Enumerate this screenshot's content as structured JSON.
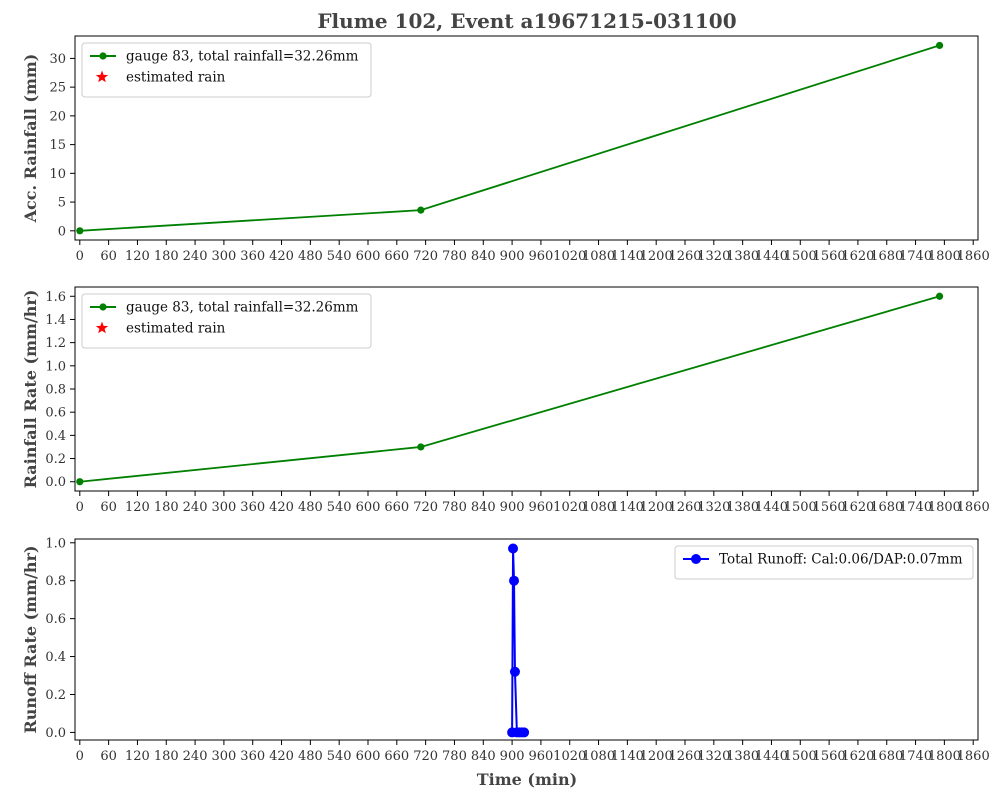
{
  "chart_data": {
    "title": "Flume 102, Event a19671215-031100",
    "xlabel": "Time (min)",
    "xlim": [
      -10,
      1870
    ],
    "xticks": [
      0,
      60,
      120,
      180,
      240,
      300,
      360,
      420,
      480,
      540,
      600,
      660,
      720,
      780,
      840,
      900,
      960,
      1020,
      1080,
      1140,
      1200,
      1260,
      1320,
      1380,
      1440,
      1500,
      1560,
      1620,
      1680,
      1740,
      1800,
      1860
    ],
    "panels": [
      {
        "type": "line",
        "ylabel": "Acc. Rainfall (mm)",
        "ylim": [
          -1.6,
          33.9
        ],
        "yticks": [
          0,
          5,
          10,
          15,
          20,
          25,
          30
        ],
        "ytick_labels": [
          "0",
          "5",
          "10",
          "15",
          "20",
          "25",
          "30"
        ],
        "legend_position": "top-left",
        "series": [
          {
            "name": "gauge 83, total rainfall=32.26mm",
            "color": "#008000",
            "marker": "circle",
            "x": [
              0,
              710,
              1790
            ],
            "y": [
              0,
              3.6,
              32.26
            ]
          },
          {
            "name": "estimated rain",
            "color": "#ff0000",
            "marker": "star",
            "x": [],
            "y": []
          }
        ]
      },
      {
        "type": "line",
        "ylabel": "Rainfall Rate (mm/hr)",
        "ylim": [
          -0.08,
          1.68
        ],
        "yticks": [
          0,
          0.2,
          0.4,
          0.6,
          0.8,
          1.0,
          1.2,
          1.4,
          1.6
        ],
        "ytick_labels": [
          "0.0",
          "0.2",
          "0.4",
          "0.6",
          "0.8",
          "1.0",
          "1.2",
          "1.4",
          "1.6"
        ],
        "legend_position": "top-left",
        "series": [
          {
            "name": "gauge 83, total rainfall=32.26mm",
            "color": "#008000",
            "marker": "circle",
            "x": [
              0,
              710,
              1790
            ],
            "y": [
              0,
              0.3,
              1.6
            ]
          },
          {
            "name": "estimated rain",
            "color": "#ff0000",
            "marker": "star",
            "x": [],
            "y": []
          }
        ]
      },
      {
        "type": "line",
        "ylabel": "Runoff Rate (mm/hr)",
        "ylim": [
          -0.04,
          1.02
        ],
        "yticks": [
          0,
          0.2,
          0.4,
          0.6,
          0.8,
          1.0
        ],
        "ytick_labels": [
          "0.0",
          "0.2",
          "0.4",
          "0.6",
          "0.8",
          "1.0"
        ],
        "legend_position": "top-right",
        "series": [
          {
            "name": "Total Runoff: Cal:0.06/DAP:0.07mm",
            "color": "#0000ff",
            "marker": "circle-large",
            "x": [
              900,
              902,
              904,
              906,
              910,
              915,
              920,
              925
            ],
            "y": [
              0,
              0.97,
              0.8,
              0.32,
              0,
              0,
              0,
              0
            ]
          }
        ]
      }
    ]
  }
}
